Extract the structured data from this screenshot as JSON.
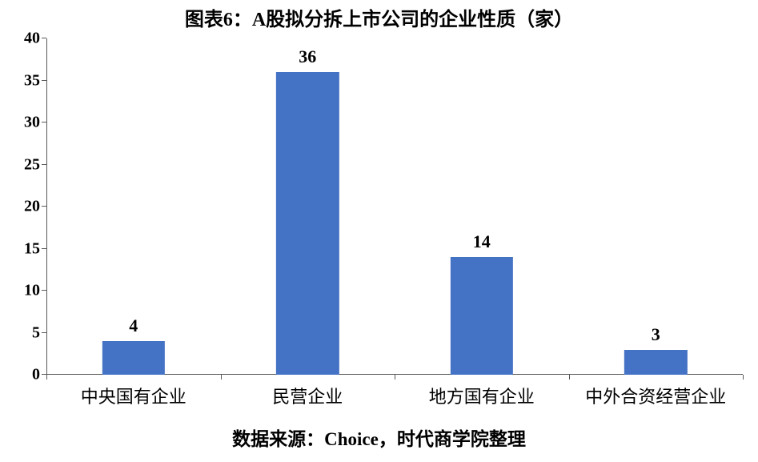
{
  "chart": {
    "type": "bar",
    "title": "图表6：A股拟分拆上市公司的企业性质（家）",
    "title_fontsize": 24,
    "title_fontweight": "bold",
    "title_color": "#000000",
    "source": "数据来源：Choice，时代商学院整理",
    "source_fontsize": 23,
    "source_fontweight": "bold",
    "source_color": "#000000",
    "background_color": "#ffffff",
    "axis_color": "#595959",
    "bar_color": "#4472c4",
    "bar_width_ratio": 0.36,
    "ylim": [
      0,
      40
    ],
    "ytick_step": 5,
    "yticks": [
      "0",
      "5",
      "10",
      "15",
      "20",
      "25",
      "30",
      "35",
      "40"
    ],
    "ytick_fontsize": 20,
    "ytick_fontweight": "bold",
    "ytick_color": "#000000",
    "xtick_fontsize": 22,
    "xtick_color": "#000000",
    "value_label_fontsize": 22,
    "value_label_fontweight": "bold",
    "value_label_color": "#000000",
    "grid": false,
    "categories": [
      "中央国有企业",
      "民营企业",
      "地方国有企业",
      "中外合资经营企业"
    ],
    "values": [
      4,
      36,
      14,
      3
    ]
  }
}
